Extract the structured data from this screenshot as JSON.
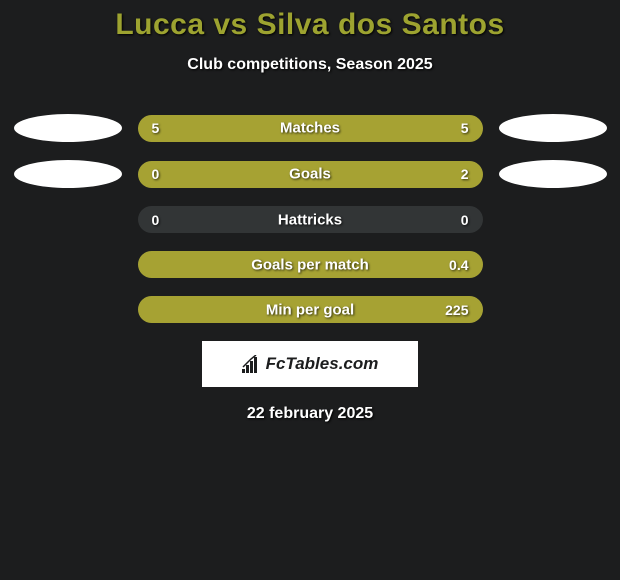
{
  "title": "Lucca vs Silva dos Santos",
  "subtitle": "Club competitions, Season 2025",
  "stats": [
    {
      "label": "Matches",
      "left_value": "5",
      "right_value": "5",
      "left_pct": 50,
      "right_pct": 50,
      "show_ovals": true
    },
    {
      "label": "Goals",
      "left_value": "0",
      "right_value": "2",
      "left_pct": 17,
      "right_pct": 83,
      "show_ovals": true
    },
    {
      "label": "Hattricks",
      "left_value": "0",
      "right_value": "0",
      "left_pct": 0,
      "right_pct": 0,
      "show_ovals": false
    },
    {
      "label": "Goals per match",
      "left_value": "",
      "right_value": "0.4",
      "left_pct": 5,
      "right_pct": 95,
      "show_ovals": false
    },
    {
      "label": "Min per goal",
      "left_value": "",
      "right_value": "225",
      "left_pct": 5,
      "right_pct": 95,
      "show_ovals": false
    }
  ],
  "logo_text": "FcTables.com",
  "date": "22 february 2025",
  "colors": {
    "background": "#1c1d1e",
    "title": "#9da330",
    "bar_fill": "#a6a233",
    "bar_bg": "#323536",
    "text": "#ffffff",
    "oval": "#ffffff"
  }
}
